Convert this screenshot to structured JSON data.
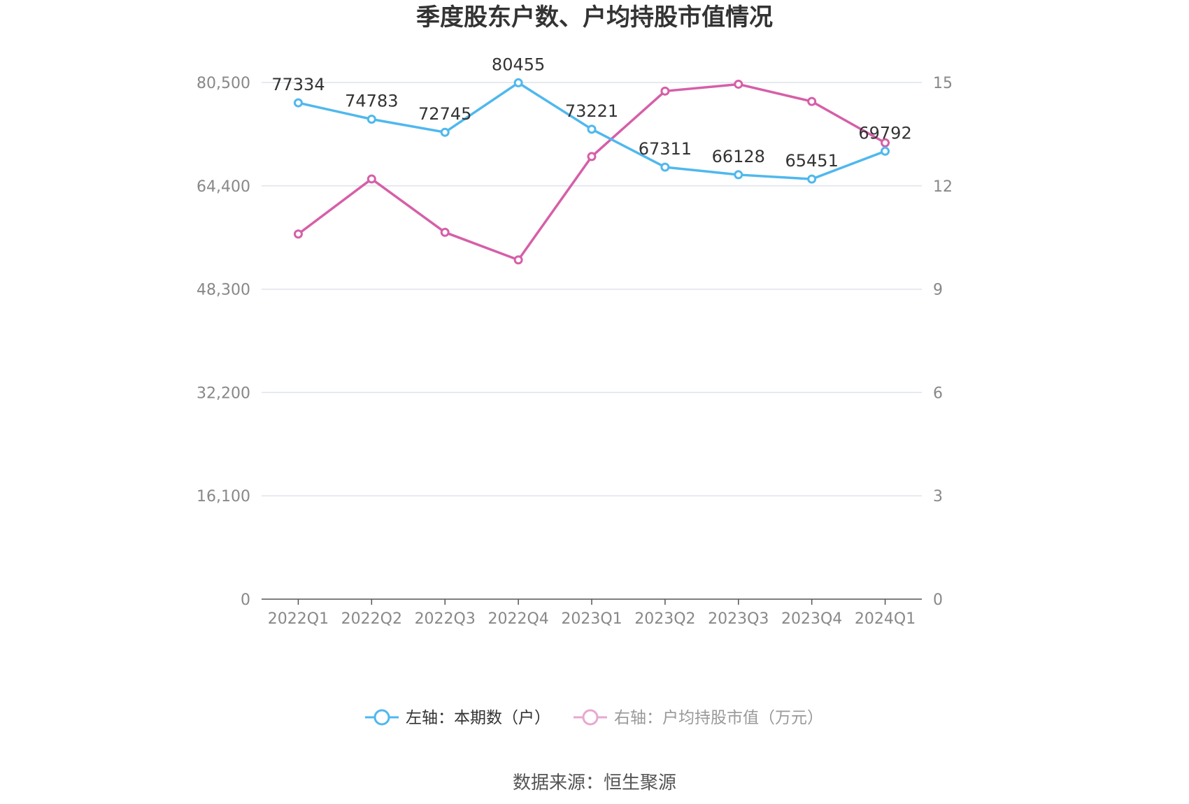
{
  "chart_data": {
    "type": "line",
    "title": "季度股东户数、户均持股市值情况",
    "categories": [
      "2022Q1",
      "2022Q2",
      "2022Q3",
      "2022Q4",
      "2023Q1",
      "2023Q2",
      "2023Q3",
      "2023Q4",
      "2024Q1"
    ],
    "left_axis": {
      "ticks": [
        "0",
        "16,100",
        "32,200",
        "48,300",
        "64,400",
        "80,500"
      ],
      "ylim": [
        0,
        80500
      ]
    },
    "right_axis": {
      "ticks": [
        "0",
        "3",
        "6",
        "9",
        "12",
        "15"
      ],
      "ylim": [
        0,
        15
      ]
    },
    "series": [
      {
        "name": "左轴：本期数（户）",
        "axis": "left",
        "color": "#4FB8EE",
        "values": [
          77334,
          74783,
          72745,
          80455,
          73221,
          67311,
          66128,
          65451,
          69792
        ],
        "labels": [
          "77334",
          "74783",
          "72745",
          "80455",
          "73221",
          "67311",
          "66128",
          "65451",
          "69792"
        ]
      },
      {
        "name": "右轴：户均持股市值（万元）",
        "axis": "right",
        "color": "#D65FA8",
        "values": [
          10.6,
          12.2,
          10.65,
          9.85,
          12.85,
          14.75,
          14.95,
          14.45,
          13.25
        ]
      }
    ],
    "grid": true,
    "legend_position": "bottom"
  },
  "source_text": "数据来源：恒生聚源"
}
